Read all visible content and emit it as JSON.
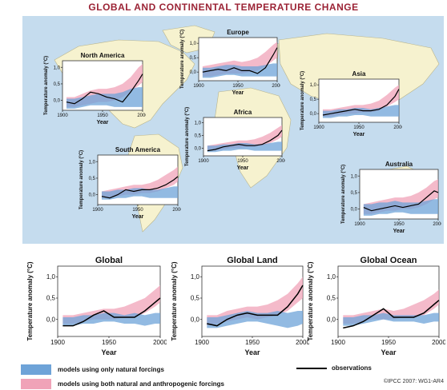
{
  "title": "GLOBAL AND CONTINENTAL TEMPERATURE CHANGE",
  "credit": "©IPCC 2007: WG1-AR4",
  "colors": {
    "natural": "#6ea3d8",
    "anthro": "#f0a3b8",
    "overlap": "#a59bd0",
    "observations": "#000000",
    "ocean": "#c5dcee",
    "land": "#f6f2cf",
    "title": "#9b2335"
  },
  "legend": {
    "natural_label": "models using only natural forcings",
    "anthro_label": "models using both natural and anthropogenic forcings",
    "obs_label": "observations"
  },
  "chart_data": [
    {
      "id": "north-america",
      "type": "area",
      "title": "North America",
      "xlabel": "Year",
      "ylabel": "Temperature anomaly (°C)",
      "xlim": [
        1900,
        2000
      ],
      "ylim": [
        -0.3,
        1.2
      ],
      "xticks": [
        "1900",
        "1950",
        "2000"
      ],
      "yticks": [
        "0,0",
        "0,5",
        "1,0"
      ],
      "x": [
        1905,
        1915,
        1925,
        1935,
        1945,
        1955,
        1965,
        1975,
        1985,
        1995,
        2000
      ],
      "observations": [
        -0.05,
        -0.1,
        0.05,
        0.25,
        0.2,
        0.1,
        0.05,
        -0.05,
        0.25,
        0.6,
        0.8
      ],
      "natural": {
        "low": [
          -0.25,
          -0.25,
          -0.2,
          -0.15,
          -0.15,
          -0.15,
          -0.2,
          -0.2,
          -0.2,
          -0.2,
          -0.2
        ],
        "high": [
          0.05,
          0.05,
          0.1,
          0.15,
          0.2,
          0.2,
          0.2,
          0.25,
          0.35,
          0.4,
          0.4
        ]
      },
      "anthro": {
        "low": [
          -0.2,
          -0.2,
          -0.15,
          -0.1,
          -0.05,
          -0.05,
          0.0,
          0.1,
          0.25,
          0.45,
          0.55
        ],
        "high": [
          0.1,
          0.1,
          0.2,
          0.3,
          0.35,
          0.35,
          0.4,
          0.5,
          0.7,
          1.0,
          1.1
        ]
      }
    },
    {
      "id": "europe",
      "type": "area",
      "title": "Europe",
      "xlabel": "Year",
      "ylabel": "Temperature anomaly (°C)",
      "xlim": [
        1900,
        2000
      ],
      "ylim": [
        -0.3,
        1.2
      ],
      "xticks": [
        "1900",
        "1950",
        "2000"
      ],
      "yticks": [
        "0,0",
        "0,5",
        "1,0"
      ],
      "x": [
        1905,
        1915,
        1925,
        1935,
        1945,
        1955,
        1965,
        1975,
        1985,
        1995,
        2000
      ],
      "observations": [
        0.0,
        0.05,
        0.1,
        0.05,
        0.15,
        0.05,
        0.05,
        -0.05,
        0.15,
        0.6,
        0.85
      ],
      "natural": {
        "low": [
          -0.2,
          -0.2,
          -0.15,
          -0.1,
          -0.1,
          -0.15,
          -0.15,
          -0.15,
          -0.15,
          -0.15,
          -0.15
        ],
        "high": [
          0.15,
          0.15,
          0.2,
          0.25,
          0.25,
          0.2,
          0.2,
          0.2,
          0.25,
          0.3,
          0.3
        ]
      },
      "anthro": {
        "low": [
          -0.15,
          -0.15,
          -0.1,
          -0.05,
          -0.05,
          -0.05,
          0.0,
          0.05,
          0.2,
          0.4,
          0.5
        ],
        "high": [
          0.2,
          0.25,
          0.3,
          0.35,
          0.4,
          0.35,
          0.4,
          0.5,
          0.7,
          0.95,
          1.05
        ]
      }
    },
    {
      "id": "asia",
      "type": "area",
      "title": "Asia",
      "xlabel": "Year",
      "ylabel": "Temperature anomaly (°C)",
      "xlim": [
        1900,
        2000
      ],
      "ylim": [
        -0.3,
        1.2
      ],
      "xticks": [
        "1900",
        "1950",
        "2000"
      ],
      "yticks": [
        "0,0",
        "0,5",
        "1,0"
      ],
      "x": [
        1905,
        1915,
        1925,
        1935,
        1945,
        1955,
        1965,
        1975,
        1985,
        1995,
        2000
      ],
      "observations": [
        -0.05,
        0.0,
        0.05,
        0.1,
        0.15,
        0.1,
        0.1,
        0.15,
        0.3,
        0.6,
        0.85
      ],
      "natural": {
        "low": [
          -0.15,
          -0.15,
          -0.1,
          -0.1,
          -0.05,
          -0.05,
          -0.1,
          -0.1,
          -0.1,
          -0.1,
          -0.1
        ],
        "high": [
          0.1,
          0.1,
          0.15,
          0.15,
          0.2,
          0.2,
          0.15,
          0.2,
          0.25,
          0.3,
          0.3
        ]
      },
      "anthro": {
        "low": [
          -0.1,
          -0.1,
          -0.05,
          0.0,
          0.0,
          0.05,
          0.05,
          0.1,
          0.25,
          0.4,
          0.5
        ],
        "high": [
          0.15,
          0.15,
          0.2,
          0.25,
          0.3,
          0.3,
          0.35,
          0.45,
          0.65,
          0.9,
          1.0
        ]
      }
    },
    {
      "id": "africa",
      "type": "area",
      "title": "Africa",
      "xlabel": "Year",
      "ylabel": "Temperature anomaly (°C)",
      "xlim": [
        1900,
        2000
      ],
      "ylim": [
        -0.3,
        1.2
      ],
      "xticks": [
        "1900",
        "1950",
        "2000"
      ],
      "yticks": [
        "0,0",
        "0,5",
        "1,0"
      ],
      "x": [
        1905,
        1915,
        1925,
        1935,
        1945,
        1955,
        1965,
        1975,
        1985,
        1995,
        2000
      ],
      "observations": [
        -0.1,
        -0.05,
        0.05,
        0.1,
        0.15,
        0.1,
        0.1,
        0.15,
        0.3,
        0.5,
        0.7
      ],
      "natural": {
        "low": [
          -0.15,
          -0.15,
          -0.1,
          -0.1,
          -0.05,
          -0.05,
          -0.1,
          -0.1,
          -0.1,
          -0.1,
          -0.1
        ],
        "high": [
          0.1,
          0.1,
          0.15,
          0.15,
          0.2,
          0.2,
          0.15,
          0.15,
          0.2,
          0.25,
          0.25
        ]
      },
      "anthro": {
        "low": [
          -0.1,
          -0.1,
          -0.05,
          0.0,
          0.0,
          0.05,
          0.05,
          0.1,
          0.2,
          0.35,
          0.45
        ],
        "high": [
          0.1,
          0.15,
          0.2,
          0.25,
          0.3,
          0.3,
          0.35,
          0.45,
          0.6,
          0.8,
          0.9
        ]
      }
    },
    {
      "id": "south-america",
      "type": "area",
      "title": "South America",
      "xlabel": "Year",
      "ylabel": "Temperature anomaly (°C)",
      "xlim": [
        1900,
        2000
      ],
      "ylim": [
        -0.3,
        1.2
      ],
      "xticks": [
        "1900",
        "1950",
        "2000"
      ],
      "yticks": [
        "0,0",
        "0,5",
        "1,0"
      ],
      "x": [
        1905,
        1915,
        1925,
        1935,
        1945,
        1955,
        1965,
        1975,
        1985,
        1995,
        2000
      ],
      "observations": [
        -0.05,
        -0.1,
        0.0,
        0.15,
        0.1,
        0.15,
        0.15,
        0.2,
        0.3,
        0.45,
        0.55
      ],
      "natural": {
        "low": [
          -0.15,
          -0.15,
          -0.1,
          -0.1,
          -0.05,
          -0.05,
          -0.1,
          -0.1,
          -0.1,
          -0.1,
          -0.1
        ],
        "high": [
          0.1,
          0.1,
          0.15,
          0.15,
          0.2,
          0.2,
          0.15,
          0.15,
          0.2,
          0.25,
          0.25
        ]
      },
      "anthro": {
        "low": [
          -0.1,
          -0.1,
          -0.05,
          0.0,
          0.0,
          0.05,
          0.05,
          0.1,
          0.2,
          0.3,
          0.4
        ],
        "high": [
          0.1,
          0.15,
          0.2,
          0.25,
          0.3,
          0.3,
          0.35,
          0.45,
          0.6,
          0.75,
          0.85
        ]
      }
    },
    {
      "id": "australia",
      "type": "area",
      "title": "Australia",
      "xlabel": "Year",
      "ylabel": "Temperature anomaly (°C)",
      "xlim": [
        1900,
        2000
      ],
      "ylim": [
        -0.3,
        1.2
      ],
      "xticks": [
        "1900",
        "1950",
        "2000"
      ],
      "yticks": [
        "0,0",
        "0,5",
        "1,0"
      ],
      "x": [
        1905,
        1915,
        1925,
        1935,
        1945,
        1955,
        1965,
        1975,
        1985,
        1995,
        2000
      ],
      "observations": [
        0.05,
        -0.05,
        0.0,
        0.05,
        0.1,
        0.05,
        0.1,
        0.15,
        0.35,
        0.55,
        0.5
      ],
      "natural": {
        "low": [
          -0.2,
          -0.2,
          -0.15,
          -0.15,
          -0.1,
          -0.1,
          -0.15,
          -0.15,
          -0.15,
          -0.15,
          -0.15
        ],
        "high": [
          0.15,
          0.15,
          0.2,
          0.2,
          0.25,
          0.2,
          0.2,
          0.2,
          0.25,
          0.3,
          0.3
        ]
      },
      "anthro": {
        "low": [
          -0.15,
          -0.15,
          -0.1,
          -0.05,
          -0.05,
          0.0,
          0.0,
          0.05,
          0.15,
          0.3,
          0.35
        ],
        "high": [
          0.15,
          0.2,
          0.25,
          0.3,
          0.35,
          0.35,
          0.4,
          0.5,
          0.65,
          0.85,
          0.9
        ]
      }
    },
    {
      "id": "global",
      "type": "area",
      "title": "Global",
      "xlabel": "Year",
      "ylabel": "Temperature anomaly (°C)",
      "xlim": [
        1900,
        2000
      ],
      "ylim": [
        -0.4,
        1.25
      ],
      "xticks": [
        "1900",
        "1950",
        "2000"
      ],
      "yticks": [
        "0,0",
        "0,5",
        "1,0"
      ],
      "x": [
        1905,
        1915,
        1925,
        1935,
        1945,
        1955,
        1965,
        1975,
        1985,
        1995,
        2000
      ],
      "observations": [
        -0.15,
        -0.15,
        -0.05,
        0.1,
        0.2,
        0.05,
        0.05,
        0.05,
        0.2,
        0.4,
        0.5
      ],
      "natural": {
        "low": [
          -0.15,
          -0.15,
          -0.1,
          -0.1,
          -0.05,
          -0.05,
          -0.1,
          -0.1,
          -0.15,
          -0.1,
          -0.1
        ],
        "high": [
          0.05,
          0.05,
          0.1,
          0.1,
          0.15,
          0.15,
          0.1,
          0.15,
          0.1,
          0.15,
          0.15
        ]
      },
      "anthro": {
        "low": [
          -0.1,
          -0.1,
          -0.05,
          0.0,
          0.0,
          0.0,
          0.05,
          0.05,
          0.15,
          0.3,
          0.4
        ],
        "high": [
          0.1,
          0.1,
          0.15,
          0.2,
          0.25,
          0.25,
          0.3,
          0.4,
          0.5,
          0.7,
          0.8
        ]
      }
    },
    {
      "id": "global-land",
      "type": "area",
      "title": "Global Land",
      "xlabel": "Year",
      "ylabel": "Temperature anomaly (°C)",
      "xlim": [
        1900,
        2000
      ],
      "ylim": [
        -0.4,
        1.25
      ],
      "xticks": [
        "1900",
        "1950",
        "2000"
      ],
      "yticks": [
        "0,0",
        "0,5",
        "1,0"
      ],
      "x": [
        1905,
        1915,
        1925,
        1935,
        1945,
        1955,
        1965,
        1975,
        1985,
        1995,
        2000
      ],
      "observations": [
        -0.1,
        -0.15,
        0.0,
        0.1,
        0.15,
        0.1,
        0.1,
        0.1,
        0.3,
        0.6,
        0.8
      ],
      "natural": {
        "low": [
          -0.2,
          -0.2,
          -0.15,
          -0.1,
          -0.05,
          -0.05,
          -0.1,
          -0.15,
          -0.2,
          -0.15,
          -0.1
        ],
        "high": [
          0.05,
          0.05,
          0.1,
          0.15,
          0.2,
          0.15,
          0.15,
          0.2,
          0.15,
          0.2,
          0.2
        ]
      },
      "anthro": {
        "low": [
          -0.15,
          -0.1,
          -0.05,
          0.0,
          0.05,
          0.0,
          0.05,
          0.1,
          0.2,
          0.4,
          0.5
        ],
        "high": [
          0.1,
          0.1,
          0.2,
          0.25,
          0.3,
          0.3,
          0.35,
          0.45,
          0.6,
          0.85,
          1.0
        ]
      }
    },
    {
      "id": "global-ocean",
      "type": "area",
      "title": "Global Ocean",
      "xlabel": "Year",
      "ylabel": "Temperature anomaly (°C)",
      "xlim": [
        1900,
        2000
      ],
      "ylim": [
        -0.4,
        1.25
      ],
      "xticks": [
        "1900",
        "1950",
        "2000"
      ],
      "yticks": [
        "0,0",
        "0,5",
        "1,0"
      ],
      "x": [
        1905,
        1915,
        1925,
        1935,
        1945,
        1955,
        1965,
        1975,
        1985,
        1995,
        2000
      ],
      "observations": [
        -0.2,
        -0.15,
        -0.05,
        0.1,
        0.25,
        0.05,
        0.05,
        0.05,
        0.15,
        0.35,
        0.45
      ],
      "natural": {
        "low": [
          -0.15,
          -0.15,
          -0.1,
          -0.05,
          0.0,
          -0.05,
          -0.05,
          -0.05,
          -0.1,
          -0.05,
          -0.05
        ],
        "high": [
          0.05,
          0.05,
          0.1,
          0.1,
          0.15,
          0.1,
          0.1,
          0.1,
          0.1,
          0.15,
          0.15
        ]
      },
      "anthro": {
        "low": [
          -0.1,
          -0.1,
          -0.05,
          0.0,
          0.0,
          0.0,
          0.05,
          0.05,
          0.1,
          0.25,
          0.35
        ],
        "high": [
          0.1,
          0.1,
          0.15,
          0.2,
          0.25,
          0.2,
          0.25,
          0.35,
          0.45,
          0.6,
          0.7
        ]
      }
    }
  ]
}
